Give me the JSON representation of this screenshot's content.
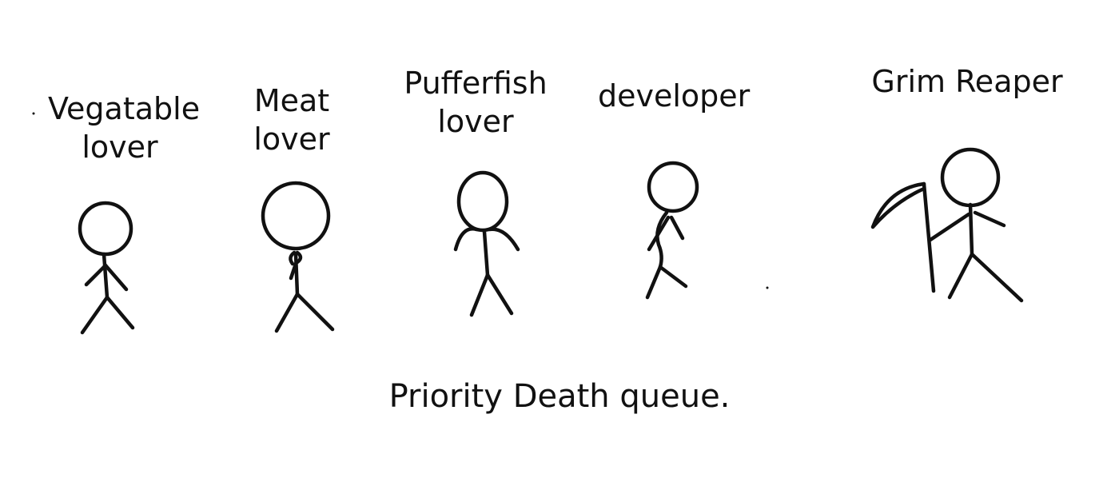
{
  "caption": "Priority Death queue.",
  "figures": [
    {
      "label_line1": "Vegatable",
      "label_line2": "lover"
    },
    {
      "label_line1": "Meat",
      "label_line2": "lover"
    },
    {
      "label_line1": "Pufferfish",
      "label_line2": "lover"
    },
    {
      "label_line1": "developer"
    },
    {
      "label_line1": "Grim Reaper"
    }
  ]
}
